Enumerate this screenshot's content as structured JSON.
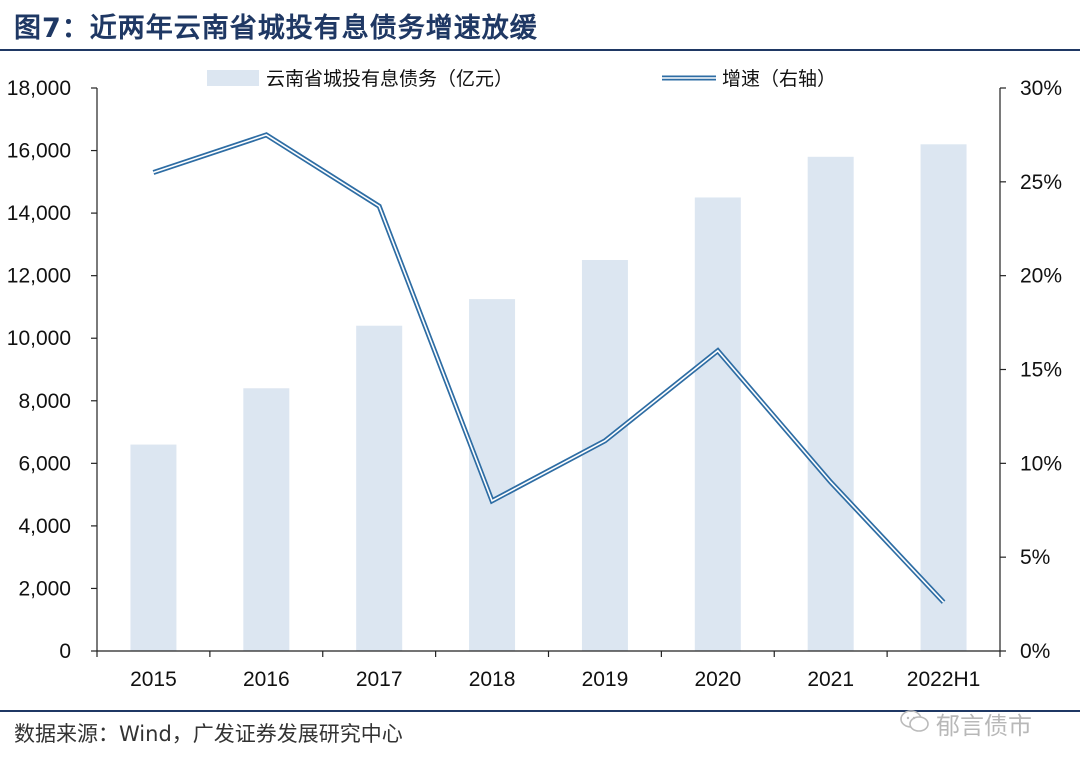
{
  "header": {
    "title": "图7：近两年云南省城投有息债务增速放缓"
  },
  "footer": {
    "source": "数据来源：Wind，广发证券发展研究中心",
    "watermark": "郁言债市"
  },
  "colors": {
    "bar": "#dce6f1",
    "line_outer": "#2e6da4",
    "line_inner": "#ffffff",
    "title": "#1f3864"
  },
  "chart_data": {
    "type": "bar",
    "categories": [
      "2015",
      "2016",
      "2017",
      "2018",
      "2019",
      "2020",
      "2021",
      "2022H1"
    ],
    "series": [
      {
        "name": "云南省城投有息债务（亿元）",
        "type": "bar",
        "axis": "left",
        "values": [
          6600,
          8400,
          10400,
          11250,
          12500,
          14500,
          15800,
          16200
        ]
      },
      {
        "name": "增速（右轴）",
        "type": "line",
        "axis": "right",
        "values": [
          25.5,
          27.5,
          23.7,
          8.0,
          11.2,
          16.0,
          9.0,
          2.6
        ]
      }
    ],
    "yleft": {
      "min": 0,
      "max": 18000,
      "ticks": [
        0,
        2000,
        4000,
        6000,
        8000,
        10000,
        12000,
        14000,
        16000,
        18000
      ],
      "tick_labels": [
        "0",
        "2,000",
        "4,000",
        "6,000",
        "8,000",
        "10,000",
        "12,000",
        "14,000",
        "16,000",
        "18,000"
      ]
    },
    "yright": {
      "min": 0,
      "max": 30,
      "ticks": [
        0,
        5,
        10,
        15,
        20,
        25,
        30
      ],
      "tick_labels": [
        "0%",
        "5%",
        "10%",
        "15%",
        "20%",
        "25%",
        "30%"
      ]
    },
    "legend_position": "top"
  }
}
